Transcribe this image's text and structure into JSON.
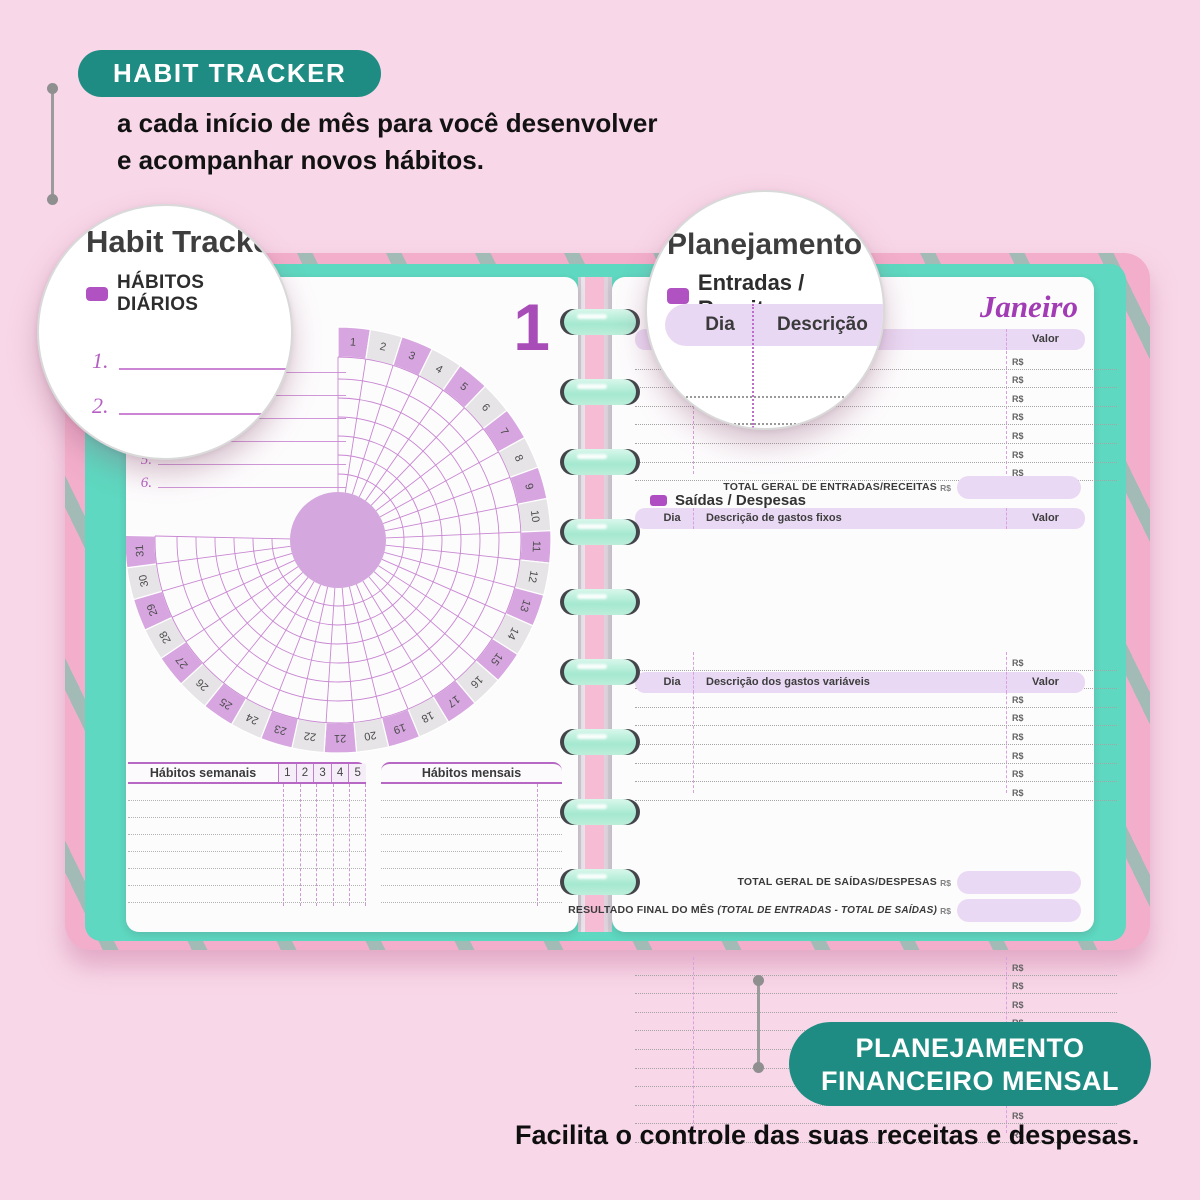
{
  "colors": {
    "background": "#f8d7e8",
    "badge_teal": "#1e8c82",
    "cover_pink": "#f2aecb",
    "cover_stripe": "#6dc4a7",
    "frame_mint": "#5ed8c0",
    "ring_mint": "#aeeeda",
    "accent_purple": "#a84cb8",
    "lavender_fill": "#ead9f4",
    "wheel_purple": "#d7a6e0",
    "wheel_gray": "#e6e4e6",
    "wheel_line": "#c887d2"
  },
  "top_annotation": {
    "badge": "HABIT TRACKER",
    "description_line1": "a cada início de mês para você desenvolver",
    "description_line2": "e acompanhar novos hábitos."
  },
  "bottom_annotation": {
    "badge_line1": "PLANEJAMENTO",
    "badge_line2": "FINANCEIRO MENSAL",
    "caption": "Facilita o controle das suas receitas e despesas."
  },
  "magnifier_left": {
    "title": "Habit Tracker",
    "section": "HÁBITOS DIÁRIOS",
    "item1": "1.",
    "item2": "2."
  },
  "magnifier_right": {
    "title": "Planejamento fin",
    "section": "Entradas / Receitas",
    "col_dia": "Dia",
    "col_descricao": "Descrição"
  },
  "habit_page": {
    "page_number": "1",
    "line_numbers": [
      "1.",
      "2.",
      "3.",
      "4.",
      "5.",
      "6."
    ],
    "wheel_days": [
      "1",
      "2",
      "3",
      "4",
      "5",
      "6",
      "7",
      "8",
      "9",
      "10",
      "11",
      "12",
      "13",
      "14",
      "15",
      "16",
      "17",
      "18",
      "19",
      "20",
      "21",
      "22",
      "23",
      "24",
      "25",
      "26",
      "27",
      "28",
      "29",
      "30",
      "31"
    ],
    "weekly_table": {
      "title": "Hábitos semanais",
      "columns": [
        "1",
        "2",
        "3",
        "4",
        "5"
      ],
      "rows": 7
    },
    "monthly_table": {
      "title": "Hábitos mensais",
      "rows": 7
    }
  },
  "finance_page": {
    "month": "Janeiro",
    "currency": "R$",
    "entries_table": {
      "dia": "Dia",
      "descricao": "Descrição",
      "valor": "Valor",
      "rows": 7
    },
    "entries_total_label": "TOTAL GERAL DE ENTRADAS/RECEITAS",
    "expenses_section": "Saídas / Despesas",
    "fixed_table": {
      "dia": "Dia",
      "descricao": "Descrição de gastos fixos",
      "valor": "Valor",
      "rows": 8
    },
    "variable_table": {
      "dia": "Dia",
      "descricao": "Descrição dos gastos variáveis",
      "valor": "Valor",
      "rows": 10
    },
    "expenses_total_label": "TOTAL GERAL DE SAÍDAS/DESPESAS",
    "final_label": "RESULTADO FINAL DO MÊS",
    "final_detail": "(TOTAL DE ENTRADAS - TOTAL DE SAÍDAS)"
  }
}
